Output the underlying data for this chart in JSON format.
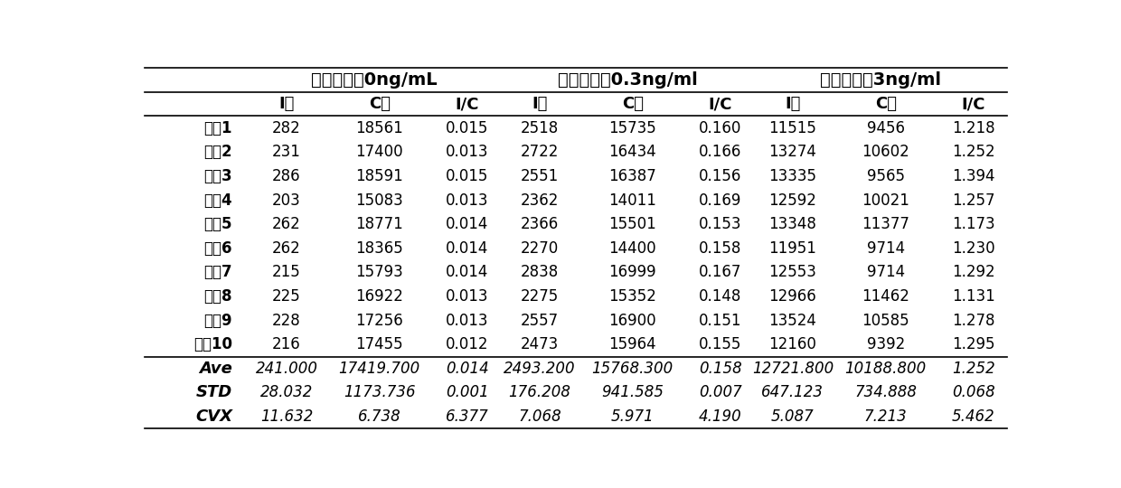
{
  "title1": "测试浓度：0ng/mL",
  "title2": "测试浓度：0.3ng/ml",
  "title3": "测试浓度：3ng/ml",
  "col_headers": [
    "",
    "I値",
    "C値",
    "I/C",
    "I値",
    "C値",
    "I/C",
    "I値",
    "C値",
    "I/C"
  ],
  "rows": [
    [
      "测试1",
      "282",
      "18561",
      "0.015",
      "2518",
      "15735",
      "0.160",
      "11515",
      "9456",
      "1.218"
    ],
    [
      "测试2",
      "231",
      "17400",
      "0.013",
      "2722",
      "16434",
      "0.166",
      "13274",
      "10602",
      "1.252"
    ],
    [
      "测试3",
      "286",
      "18591",
      "0.015",
      "2551",
      "16387",
      "0.156",
      "13335",
      "9565",
      "1.394"
    ],
    [
      "测试4",
      "203",
      "15083",
      "0.013",
      "2362",
      "14011",
      "0.169",
      "12592",
      "10021",
      "1.257"
    ],
    [
      "测试5",
      "262",
      "18771",
      "0.014",
      "2366",
      "15501",
      "0.153",
      "13348",
      "11377",
      "1.173"
    ],
    [
      "测试6",
      "262",
      "18365",
      "0.014",
      "2270",
      "14400",
      "0.158",
      "11951",
      "9714",
      "1.230"
    ],
    [
      "测试7",
      "215",
      "15793",
      "0.014",
      "2838",
      "16999",
      "0.167",
      "12553",
      "9714",
      "1.292"
    ],
    [
      "测试8",
      "225",
      "16922",
      "0.013",
      "2275",
      "15352",
      "0.148",
      "12966",
      "11462",
      "1.131"
    ],
    [
      "测试9",
      "228",
      "17256",
      "0.013",
      "2557",
      "16900",
      "0.151",
      "13524",
      "10585",
      "1.278"
    ],
    [
      "测试10",
      "216",
      "17455",
      "0.012",
      "2473",
      "15964",
      "0.155",
      "12160",
      "9392",
      "1.295"
    ]
  ],
  "stat_rows": [
    [
      "Ave",
      "241.000",
      "17419.700",
      "0.014",
      "2493.200",
      "15768.300",
      "0.158",
      "12721.800",
      "10188.800",
      "1.252"
    ],
    [
      "STD",
      "28.032",
      "1173.736",
      "0.001",
      "176.208",
      "941.585",
      "0.007",
      "647.123",
      "734.888",
      "0.068"
    ],
    [
      "CVX",
      "11.632",
      "6.738",
      "6.377",
      "7.068",
      "5.971",
      "4.190",
      "5.087",
      "7.213",
      "5.462"
    ]
  ],
  "background_color": "#ffffff",
  "title_fontsize": 14,
  "header_fontsize": 13,
  "cell_fontsize": 12,
  "row_label_fontsize": 12,
  "stat_label_fontsize": 13
}
